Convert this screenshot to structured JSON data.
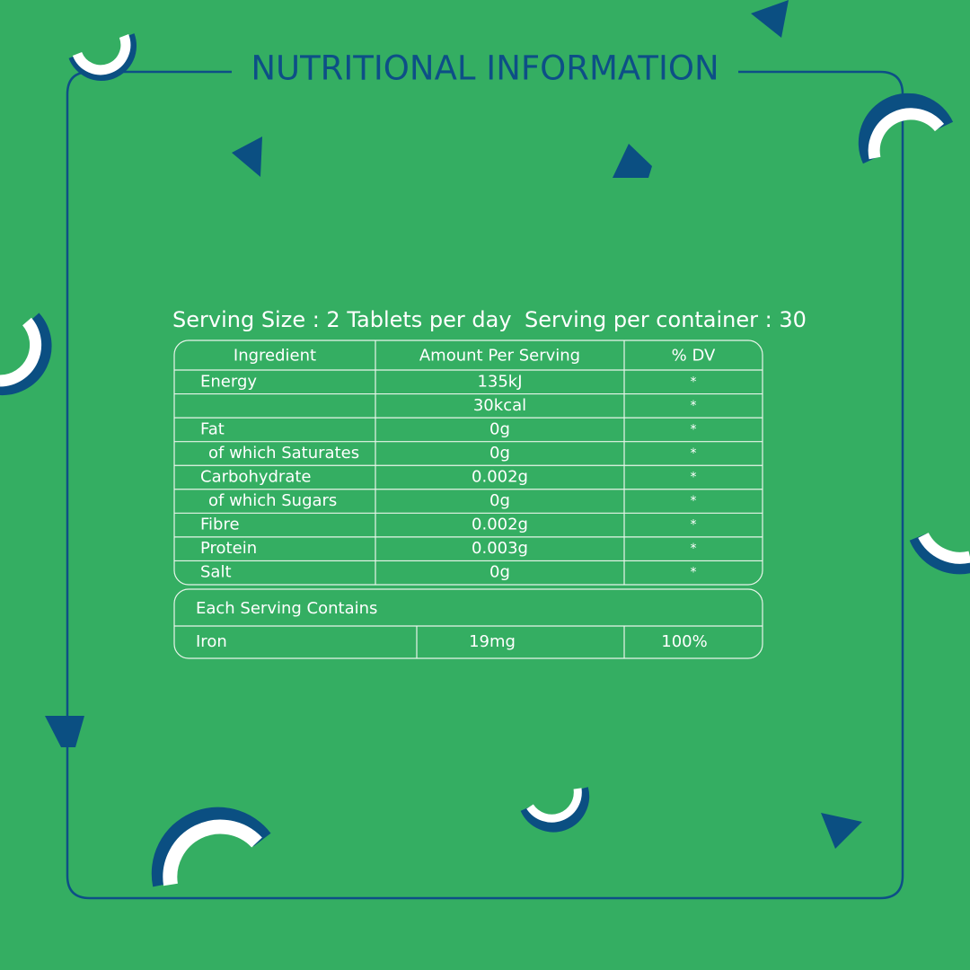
{
  "header": {
    "title": "NUTRITIONAL INFORMATION"
  },
  "serving": {
    "size": "Serving Size : 2 Tablets per day",
    "per_container": "Serving per container : 30"
  },
  "table": {
    "headers": [
      "Ingredient",
      "Amount Per Serving",
      "% DV"
    ],
    "rows": [
      [
        "Energy",
        "135kJ",
        "*"
      ],
      [
        null,
        "30kcal",
        "*"
      ],
      [
        "Fat",
        "0g",
        "*"
      ],
      [
        "of which Saturates",
        "0g",
        "*"
      ],
      [
        "Carbohydrate",
        "0.002g",
        "*"
      ],
      [
        "of which Sugars",
        "0g",
        "*"
      ],
      [
        "Fibre",
        "0.002g",
        "*"
      ],
      [
        "Protein",
        "0.003g",
        "*"
      ],
      [
        "Salt",
        "0g",
        "*"
      ]
    ]
  },
  "extra": {
    "title": "Each Serving Contains",
    "rows": [
      [
        "Iron",
        "19mg",
        "100%"
      ]
    ]
  }
}
